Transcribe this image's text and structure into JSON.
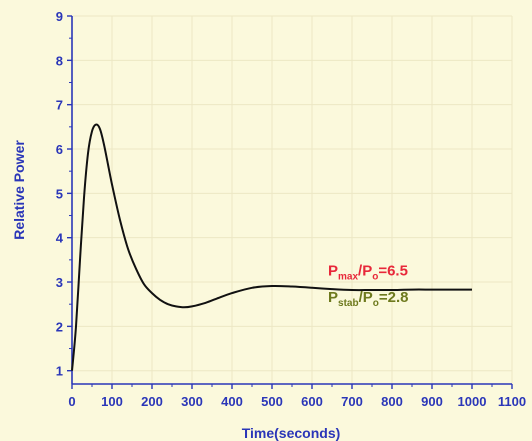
{
  "chart_data": {
    "type": "line",
    "xlabel": "Time(seconds)",
    "ylabel": "Relative Power",
    "xlim": [
      0,
      1100
    ],
    "ylim": [
      0.7,
      9
    ],
    "xticks": [
      "0",
      "100",
      "200",
      "300",
      "400",
      "500",
      "600",
      "700",
      "800",
      "900",
      "1000",
      "1100"
    ],
    "yticks": [
      "1",
      "2",
      "3",
      "4",
      "5",
      "6",
      "7",
      "8",
      "9"
    ],
    "grid": true,
    "series": [
      {
        "x": [
          0,
          10,
          20,
          30,
          40,
          50,
          60,
          70,
          80,
          90,
          100,
          120,
          140,
          160,
          180,
          200,
          220,
          240,
          260,
          280,
          300,
          330,
          360,
          400,
          450,
          500,
          550,
          600,
          650,
          700,
          750,
          800,
          850,
          900,
          950,
          1000
        ],
        "y": [
          1.0,
          2.0,
          3.5,
          4.9,
          5.9,
          6.4,
          6.55,
          6.45,
          6.1,
          5.65,
          5.2,
          4.4,
          3.75,
          3.3,
          2.95,
          2.75,
          2.6,
          2.5,
          2.45,
          2.43,
          2.45,
          2.52,
          2.62,
          2.75,
          2.87,
          2.91,
          2.9,
          2.87,
          2.84,
          2.82,
          2.82,
          2.82,
          2.83,
          2.83,
          2.83,
          2.83
        ],
        "color": "#111111"
      }
    ],
    "annotations": [
      {
        "id": "pmax",
        "main": "P",
        "sub": "max",
        "mid": "/P",
        "sub2": "o",
        "tail": "=6.5",
        "color": "#e8283a",
        "x": 640,
        "y": 3.15
      },
      {
        "id": "pstab",
        "main": "P",
        "sub": "stab",
        "mid": "/P",
        "sub2": "o",
        "tail": "=2.8",
        "color": "#6e7a1e",
        "x": 640,
        "y": 2.55
      }
    ]
  }
}
